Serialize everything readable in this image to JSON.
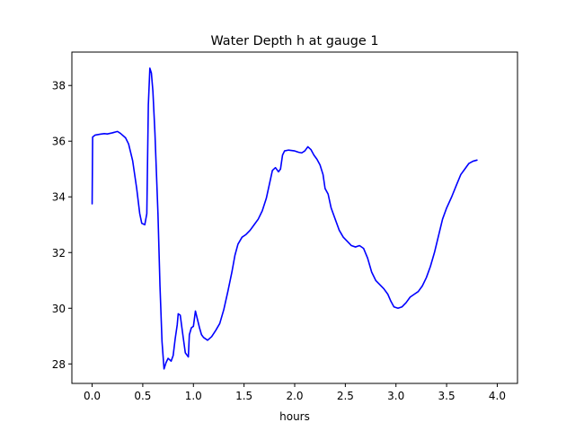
{
  "chart_data": {
    "type": "line",
    "title": "Water Depth h at gauge 1",
    "xlabel": "hours",
    "ylabel": "",
    "xlim": [
      -0.2,
      4.2
    ],
    "ylim": [
      27.3,
      39.2
    ],
    "xticks": [
      0.0,
      0.5,
      1.0,
      1.5,
      2.0,
      2.5,
      3.0,
      3.5,
      4.0
    ],
    "xtick_labels": [
      "0.0",
      "0.5",
      "1.0",
      "1.5",
      "2.0",
      "2.5",
      "3.0",
      "3.5",
      "4.0"
    ],
    "yticks": [
      28,
      30,
      32,
      34,
      36,
      38
    ],
    "ytick_labels": [
      "28",
      "30",
      "32",
      "34",
      "36",
      "38"
    ],
    "grid": false,
    "series": [
      {
        "color": "#0000ff",
        "points": [
          [
            0.0,
            33.75
          ],
          [
            0.005,
            36.15
          ],
          [
            0.03,
            36.22
          ],
          [
            0.08,
            36.25
          ],
          [
            0.12,
            36.27
          ],
          [
            0.15,
            36.26
          ],
          [
            0.2,
            36.3
          ],
          [
            0.25,
            36.35
          ],
          [
            0.28,
            36.28
          ],
          [
            0.33,
            36.12
          ],
          [
            0.36,
            35.9
          ],
          [
            0.4,
            35.3
          ],
          [
            0.44,
            34.3
          ],
          [
            0.47,
            33.4
          ],
          [
            0.49,
            33.05
          ],
          [
            0.52,
            33.0
          ],
          [
            0.54,
            33.4
          ],
          [
            0.555,
            37.3
          ],
          [
            0.57,
            38.62
          ],
          [
            0.585,
            38.45
          ],
          [
            0.6,
            37.8
          ],
          [
            0.62,
            36.3
          ],
          [
            0.65,
            33.4
          ],
          [
            0.67,
            30.8
          ],
          [
            0.69,
            28.8
          ],
          [
            0.71,
            27.82
          ],
          [
            0.73,
            28.05
          ],
          [
            0.75,
            28.2
          ],
          [
            0.78,
            28.1
          ],
          [
            0.8,
            28.3
          ],
          [
            0.82,
            28.9
          ],
          [
            0.84,
            29.4
          ],
          [
            0.85,
            29.8
          ],
          [
            0.87,
            29.75
          ],
          [
            0.89,
            29.2
          ],
          [
            0.92,
            28.4
          ],
          [
            0.95,
            28.25
          ],
          [
            0.96,
            29.05
          ],
          [
            0.98,
            29.3
          ],
          [
            1.0,
            29.35
          ],
          [
            1.02,
            29.9
          ],
          [
            1.04,
            29.6
          ],
          [
            1.06,
            29.3
          ],
          [
            1.08,
            29.05
          ],
          [
            1.1,
            28.95
          ],
          [
            1.14,
            28.85
          ],
          [
            1.18,
            28.98
          ],
          [
            1.22,
            29.2
          ],
          [
            1.26,
            29.45
          ],
          [
            1.3,
            29.95
          ],
          [
            1.34,
            30.6
          ],
          [
            1.38,
            31.3
          ],
          [
            1.41,
            31.9
          ],
          [
            1.44,
            32.3
          ],
          [
            1.48,
            32.55
          ],
          [
            1.52,
            32.65
          ],
          [
            1.56,
            32.8
          ],
          [
            1.6,
            33.0
          ],
          [
            1.64,
            33.2
          ],
          [
            1.68,
            33.5
          ],
          [
            1.72,
            33.95
          ],
          [
            1.75,
            34.45
          ],
          [
            1.78,
            34.95
          ],
          [
            1.81,
            35.05
          ],
          [
            1.84,
            34.9
          ],
          [
            1.86,
            35.0
          ],
          [
            1.88,
            35.5
          ],
          [
            1.9,
            35.65
          ],
          [
            1.94,
            35.68
          ],
          [
            2.0,
            35.65
          ],
          [
            2.04,
            35.6
          ],
          [
            2.07,
            35.58
          ],
          [
            2.1,
            35.65
          ],
          [
            2.13,
            35.8
          ],
          [
            2.16,
            35.7
          ],
          [
            2.19,
            35.5
          ],
          [
            2.22,
            35.35
          ],
          [
            2.25,
            35.15
          ],
          [
            2.28,
            34.8
          ],
          [
            2.3,
            34.3
          ],
          [
            2.33,
            34.1
          ],
          [
            2.36,
            33.6
          ],
          [
            2.4,
            33.2
          ],
          [
            2.44,
            32.8
          ],
          [
            2.48,
            32.55
          ],
          [
            2.52,
            32.4
          ],
          [
            2.56,
            32.25
          ],
          [
            2.6,
            32.2
          ],
          [
            2.64,
            32.25
          ],
          [
            2.68,
            32.15
          ],
          [
            2.72,
            31.8
          ],
          [
            2.76,
            31.3
          ],
          [
            2.8,
            31.0
          ],
          [
            2.84,
            30.85
          ],
          [
            2.88,
            30.7
          ],
          [
            2.92,
            30.5
          ],
          [
            2.95,
            30.25
          ],
          [
            2.98,
            30.05
          ],
          [
            3.02,
            30.0
          ],
          [
            3.06,
            30.05
          ],
          [
            3.1,
            30.2
          ],
          [
            3.14,
            30.4
          ],
          [
            3.18,
            30.5
          ],
          [
            3.22,
            30.6
          ],
          [
            3.26,
            30.8
          ],
          [
            3.3,
            31.1
          ],
          [
            3.34,
            31.5
          ],
          [
            3.38,
            32.0
          ],
          [
            3.42,
            32.6
          ],
          [
            3.46,
            33.2
          ],
          [
            3.5,
            33.6
          ],
          [
            3.55,
            34.0
          ],
          [
            3.6,
            34.45
          ],
          [
            3.64,
            34.8
          ],
          [
            3.68,
            35.0
          ],
          [
            3.72,
            35.2
          ],
          [
            3.76,
            35.28
          ],
          [
            3.8,
            35.32
          ]
        ]
      }
    ]
  }
}
